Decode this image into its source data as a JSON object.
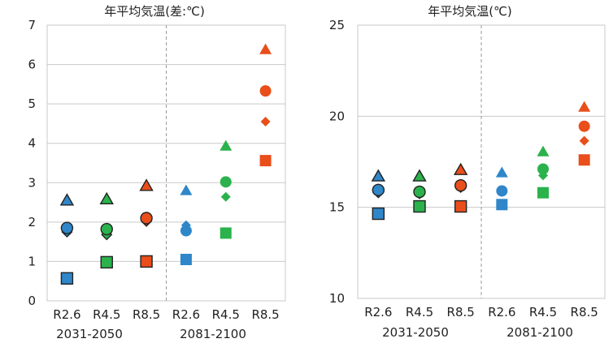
{
  "chart_data": [
    {
      "type": "scatter",
      "title": "年平均気温(差:℃)",
      "ylim": [
        0,
        7
      ],
      "yticks": [
        0,
        1,
        2,
        3,
        4,
        5,
        6,
        7
      ],
      "grid": true,
      "categories": [
        "R2.6",
        "R4.5",
        "R8.5",
        "R2.6",
        "R4.5",
        "R8.5"
      ],
      "periods": [
        "2031-2050",
        "2081-2100"
      ],
      "series": [
        {
          "marker": "triangle",
          "values": [
            2.55,
            2.58,
            2.92,
            2.8,
            3.93,
            6.38
          ]
        },
        {
          "marker": "circle",
          "values": [
            1.85,
            1.82,
            2.1,
            1.78,
            3.02,
            5.33
          ]
        },
        {
          "marker": "diamond",
          "values": [
            1.75,
            1.68,
            2.02,
            1.92,
            2.64,
            4.55
          ]
        },
        {
          "marker": "square",
          "values": [
            0.57,
            0.98,
            1.0,
            1.05,
            1.72,
            3.56
          ]
        }
      ],
      "scenario_colors": [
        "#2f86c8",
        "#2bb24c",
        "#e94e1b"
      ]
    },
    {
      "type": "scatter",
      "title": "年平均気温(℃)",
      "ylim": [
        10,
        25
      ],
      "yticks": [
        10,
        15,
        20,
        25
      ],
      "grid": true,
      "categories": [
        "R2.6",
        "R4.5",
        "R8.5",
        "R2.6",
        "R4.5",
        "R8.5"
      ],
      "periods": [
        "2031-2050",
        "2081-2100"
      ],
      "series": [
        {
          "marker": "triangle",
          "values": [
            16.7,
            16.7,
            17.05,
            16.9,
            18.05,
            20.5
          ]
        },
        {
          "marker": "circle",
          "values": [
            15.95,
            15.85,
            16.2,
            15.9,
            17.1,
            19.45
          ]
        },
        {
          "marker": "diamond",
          "values": [
            15.8,
            15.75,
            16.1,
            15.85,
            16.75,
            18.65
          ]
        },
        {
          "marker": "square",
          "values": [
            14.65,
            15.05,
            15.05,
            15.15,
            15.8,
            17.6
          ]
        }
      ],
      "scenario_colors": [
        "#2f86c8",
        "#2bb24c",
        "#e94e1b"
      ]
    }
  ]
}
